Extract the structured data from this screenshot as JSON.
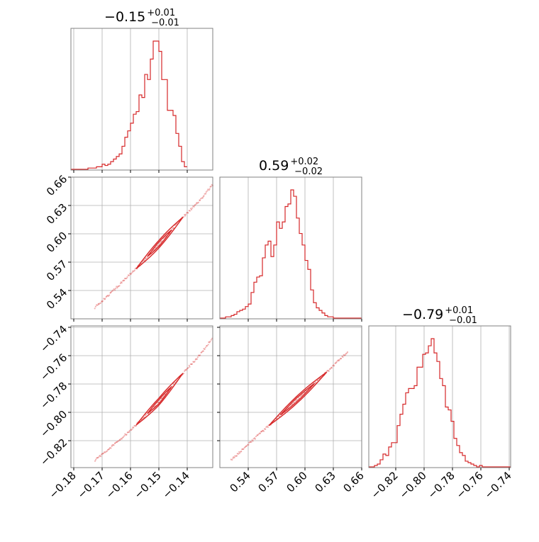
{
  "colors": {
    "series": "#d62728",
    "grid": "#b0b0b0",
    "frame": "#808080",
    "background": "#ffffff"
  },
  "chart_data": [
    {
      "type": "histogram",
      "panel": "hist-p1",
      "title": "−0.15",
      "title_sup": "+0.01",
      "title_sub": "−0.01",
      "xlim": [
        -0.181,
        -0.131
      ],
      "xticks": [
        -0.18,
        -0.17,
        -0.16,
        -0.15,
        -0.14
      ],
      "xtick_labels": [
        "−0.18",
        "−0.17",
        "−0.16",
        "−0.15",
        "−0.14"
      ],
      "tick_labels_shown": false,
      "bin_start": -0.181,
      "bin_width": 0.001,
      "counts": [
        0,
        0,
        0,
        0,
        0,
        0,
        1,
        1,
        1,
        2,
        2,
        4,
        3,
        4,
        6,
        8,
        10,
        12,
        18,
        25,
        30,
        36,
        43,
        45,
        58,
        56,
        74,
        70,
        86,
        100,
        100,
        92,
        70,
        70,
        46,
        46,
        42,
        28,
        18,
        6,
        2
      ]
    },
    {
      "type": "histogram",
      "panel": "hist-p2",
      "title": "0.59",
      "title_sup": "+0.02",
      "title_sub": "−0.02",
      "xlim": [
        0.51,
        0.66
      ],
      "xticks": [
        0.54,
        0.57,
        0.6,
        0.63,
        0.66
      ],
      "xtick_labels": [
        "0.54",
        "0.57",
        "0.60",
        "0.63",
        "0.66"
      ],
      "bin_start": 0.51,
      "bin_width": 0.003,
      "counts": [
        0,
        0,
        1,
        1,
        2,
        3,
        5,
        6,
        7,
        9,
        11,
        20,
        28,
        32,
        33,
        47,
        57,
        60,
        48,
        57,
        75,
        70,
        75,
        87,
        89,
        100,
        95,
        78,
        66,
        57,
        45,
        38,
        22,
        12,
        8,
        6,
        4,
        2,
        1,
        1,
        0,
        0,
        0,
        0,
        0,
        0,
        0,
        0,
        0,
        0
      ]
    },
    {
      "type": "histogram",
      "panel": "hist-p3",
      "title": "−0.79",
      "title_sup": "+0.01",
      "title_sub": "−0.01",
      "xlim": [
        -0.839,
        -0.739
      ],
      "xticks": [
        -0.82,
        -0.8,
        -0.78,
        -0.76,
        -0.74
      ],
      "xtick_labels": [
        "−0.82",
        "−0.80",
        "−0.78",
        "−0.76",
        "−0.74"
      ],
      "bin_start": -0.839,
      "bin_width": 0.002,
      "counts": [
        0,
        0,
        1,
        2,
        5,
        9,
        8,
        14,
        17,
        17,
        29,
        37,
        44,
        52,
        55,
        55,
        57,
        70,
        70,
        79,
        80,
        85,
        90,
        80,
        74,
        62,
        57,
        42,
        40,
        32,
        20,
        15,
        10,
        8,
        4,
        3,
        2,
        1,
        0,
        1,
        0,
        0,
        0,
        0,
        0,
        0,
        0,
        0,
        0,
        0
      ]
    },
    {
      "type": "scatter",
      "panel": "p2-vs-p1",
      "xlim": [
        -0.181,
        -0.131
      ],
      "ylim": [
        0.51,
        0.66
      ],
      "yticks": [
        0.54,
        0.57,
        0.6,
        0.63,
        0.66
      ],
      "ytick_labels": [
        "0.54",
        "0.57",
        "0.60",
        "0.63",
        "0.66"
      ],
      "ridge": {
        "x": [
          -0.1725,
          -0.165,
          -0.158,
          -0.15,
          -0.142,
          -0.136,
          -0.131
        ],
        "y": [
          0.522,
          0.543,
          0.563,
          0.589,
          0.616,
          0.634,
          0.652
        ]
      },
      "half_width": 0.004,
      "contour_x_range": [
        -0.158,
        -0.1415
      ],
      "inner_contour_x_range": [
        -0.154,
        -0.1455
      ]
    },
    {
      "type": "scatter",
      "panel": "p3-vs-p1",
      "xlim": [
        -0.181,
        -0.131
      ],
      "ylim": [
        -0.839,
        -0.739
      ],
      "yticks": [
        -0.74,
        -0.76,
        -0.78,
        -0.8,
        -0.82
      ],
      "ytick_labels": [
        "−0.74",
        "−0.76",
        "−0.78",
        "−0.80",
        "−0.82"
      ],
      "ridge": {
        "x": [
          -0.1725,
          -0.165,
          -0.158,
          -0.15,
          -0.142,
          -0.136,
          -0.131
        ],
        "y": [
          -0.8337,
          -0.8215,
          -0.809,
          -0.7925,
          -0.7735,
          -0.7605,
          -0.7475
        ]
      },
      "half_width": 0.0025,
      "contour_x_range": [
        -0.158,
        -0.1415
      ],
      "inner_contour_x_range": [
        -0.154,
        -0.1455
      ]
    },
    {
      "type": "scatter",
      "panel": "p3-vs-p2",
      "xlim": [
        0.51,
        0.66
      ],
      "ylim": [
        -0.839,
        -0.739
      ],
      "xticks": [
        0.54,
        0.57,
        0.6,
        0.63,
        0.66
      ],
      "xtick_labels": [
        "0.54",
        "0.57",
        "0.60",
        "0.63",
        "0.66"
      ],
      "ridge": {
        "x": [
          0.522,
          0.545,
          0.56,
          0.59,
          0.624,
          0.645
        ],
        "y": [
          -0.8337,
          -0.8195,
          -0.8105,
          -0.792,
          -0.771,
          -0.7575
        ]
      },
      "half_width": 0.0025,
      "contour_x_range": [
        0.562,
        0.623
      ],
      "inner_contour_x_range": [
        0.574,
        0.61
      ]
    }
  ]
}
